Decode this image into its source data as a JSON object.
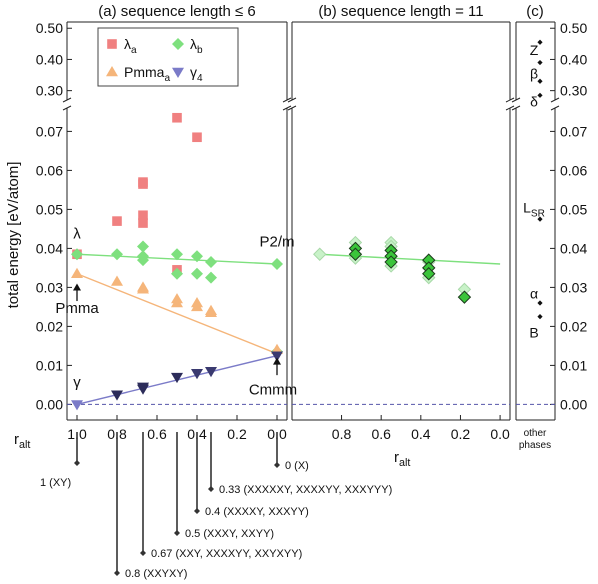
{
  "chart_data": {
    "type": "scatter",
    "ylabel": "total energy [eV/atom]",
    "y_axis": {
      "break": true,
      "lower_range": [
        -0.004,
        0.076
      ],
      "upper_range": [
        0.27,
        0.52
      ],
      "lower_ticks": [
        "0.00",
        "0.01",
        "0.02",
        "0.03",
        "0.04",
        "0.05",
        "0.06",
        "0.07"
      ],
      "upper_ticks": [
        "0.30",
        "0.40",
        "0.50"
      ],
      "ticks_both_sides": true
    },
    "panels": [
      {
        "id": "a",
        "title": "(a) sequence length ≤ 6",
        "xlabel_main": "r",
        "xlabel_sub": "alt",
        "xlim": [
          1.05,
          -0.05
        ],
        "xticks": [
          "1.0",
          "0.8",
          "0.6",
          "0.4",
          "0.2",
          "0.0"
        ],
        "legend": [
          {
            "label_main": "λ",
            "label_sub": "a",
            "marker": "square",
            "color": "#f08080"
          },
          {
            "label_main": "λ",
            "label_sub": "b",
            "marker": "diamond",
            "color": "#7ee07e"
          },
          {
            "label_main": "Pmma",
            "label_sub": "a",
            "marker": "triangle-up",
            "color": "#f5b57a"
          },
          {
            "label_main": "γ",
            "label_sub": "4",
            "marker": "triangle-down",
            "color": "#7b7bc8"
          }
        ],
        "series": [
          {
            "name": "λa",
            "marker": "square",
            "color": "#f08080",
            "points": [
              [
                1.0,
                0.0385
              ],
              [
                0.8,
                0.047
              ],
              [
                0.67,
                0.057
              ],
              [
                0.67,
                0.0565
              ],
              [
                0.67,
                0.0485
              ],
              [
                0.67,
                0.0465
              ],
              [
                0.5,
                0.0735
              ],
              [
                0.5,
                0.0345
              ],
              [
                0.4,
                0.0685
              ]
            ]
          },
          {
            "name": "λb",
            "marker": "diamond",
            "color": "#7ee07e",
            "points": [
              [
                1.0,
                0.0385
              ],
              [
                0.8,
                0.0385
              ],
              [
                0.67,
                0.0405
              ],
              [
                0.67,
                0.038
              ],
              [
                0.67,
                0.037
              ],
              [
                0.5,
                0.0385
              ],
              [
                0.5,
                0.0335
              ],
              [
                0.4,
                0.038
              ],
              [
                0.4,
                0.0335
              ],
              [
                0.33,
                0.0365
              ],
              [
                0.33,
                0.0325
              ],
              [
                0.0,
                0.036
              ],
              [
                0.0,
                0.0135
              ]
            ]
          },
          {
            "name": "Pmmaa",
            "marker": "triangle-up",
            "color": "#f5b57a",
            "points": [
              [
                1.0,
                0.0335
              ],
              [
                0.8,
                0.0315
              ],
              [
                0.67,
                0.03
              ],
              [
                0.67,
                0.0295
              ],
              [
                0.5,
                0.027
              ],
              [
                0.5,
                0.026
              ],
              [
                0.4,
                0.026
              ],
              [
                0.4,
                0.025
              ],
              [
                0.33,
                0.024
              ],
              [
                0.33,
                0.0235
              ],
              [
                0.0,
                0.014
              ]
            ]
          },
          {
            "name": "γ4",
            "marker": "triangle-down",
            "color": "#7b7bc8",
            "points": [
              [
                1.0,
                0.0
              ],
              [
                0.8,
                0.0025
              ],
              [
                0.67,
                0.0045
              ],
              [
                0.67,
                0.004
              ],
              [
                0.5,
                0.007
              ],
              [
                0.4,
                0.008
              ],
              [
                0.33,
                0.0085
              ],
              [
                0.0,
                0.0125
              ]
            ]
          }
        ],
        "fit_lines": [
          {
            "color": "#7ee07e",
            "from": [
              1.0,
              0.0385
            ],
            "to": [
              0.0,
              0.036
            ]
          },
          {
            "color": "#f5b57a",
            "from": [
              1.0,
              0.0335
            ],
            "to": [
              0.0,
              0.013
            ]
          },
          {
            "color": "#7b7bc8",
            "from": [
              1.0,
              0.0
            ],
            "to": [
              0.0,
              0.0125
            ]
          }
        ],
        "annotations": [
          {
            "text": "λ",
            "x": 1.0,
            "y": 0.0425,
            "anchor": "middle"
          },
          {
            "text": "Pmma",
            "x": 1.0,
            "y": 0.0235,
            "anchor": "middle"
          },
          {
            "text": "γ",
            "x": 1.0,
            "y": 0.0045,
            "anchor": "middle"
          },
          {
            "text": "P2/m",
            "x": 0.0,
            "y": 0.0405,
            "anchor": "middle"
          },
          {
            "text": "Cmmm",
            "x": 0.02,
            "y": 0.0025,
            "anchor": "middle"
          }
        ],
        "arrows": [
          {
            "x": 1.0,
            "from_y": 0.0265,
            "to_y": 0.031
          },
          {
            "x": 0.0,
            "from_y": 0.0075,
            "to_y": 0.012
          }
        ]
      },
      {
        "id": "b",
        "title": "(b) sequence length = 11",
        "xlabel_main": "r",
        "xlabel_sub": "alt",
        "xlim": [
          1.05,
          -0.05
        ],
        "xticks": [
          "0.8",
          "0.6",
          "0.4",
          "0.2",
          "0.0"
        ],
        "series": [
          {
            "name": "light",
            "marker": "diamond",
            "color": "#c8f2c8",
            "points": [
              [
                0.91,
                0.0385
              ],
              [
                0.73,
                0.0415
              ],
              [
                0.73,
                0.0375
              ],
              [
                0.55,
                0.0415
              ],
              [
                0.55,
                0.0405
              ],
              [
                0.55,
                0.0355
              ],
              [
                0.36,
                0.0365
              ],
              [
                0.36,
                0.0325
              ],
              [
                0.18,
                0.0295
              ]
            ]
          },
          {
            "name": "dark",
            "marker": "diamond",
            "color": "#3ac43a",
            "points": [
              [
                0.73,
                0.04
              ],
              [
                0.73,
                0.0385
              ],
              [
                0.55,
                0.0395
              ],
              [
                0.55,
                0.038
              ],
              [
                0.55,
                0.0365
              ],
              [
                0.36,
                0.037
              ],
              [
                0.36,
                0.035
              ],
              [
                0.36,
                0.0335
              ],
              [
                0.18,
                0.0275
              ]
            ]
          }
        ],
        "fit_lines": [
          {
            "color": "#7ee07e",
            "from": [
              0.91,
              0.0385
            ],
            "to": [
              0.0,
              0.036
            ]
          }
        ]
      },
      {
        "id": "c",
        "title": "(c)",
        "xlabel_lines": [
          "other",
          "phases"
        ],
        "phases": [
          {
            "label_main": "Z",
            "label_sub": "",
            "label_y": 0.43,
            "points": [
              0.455,
              0.39
            ]
          },
          {
            "label_main": "β",
            "label_sub": "",
            "label_y": 0.355,
            "points": [
              0.33
            ]
          },
          {
            "label_main": "δ",
            "label_sub": "",
            "label_y": 0.265,
            "points": [
              0.285
            ]
          },
          {
            "label_main": "L",
            "label_sub": "SR",
            "label_y": 0.0505,
            "points": [
              0.0475
            ]
          },
          {
            "label_main": "α",
            "label_sub": "",
            "label_y": 0.0285,
            "points": [
              0.026
            ]
          },
          {
            "label_main": "B",
            "label_sub": "",
            "label_y": 0.0185,
            "points": [
              0.0225
            ]
          }
        ]
      }
    ],
    "reference_line": {
      "y": 0.0,
      "style": "dashed",
      "color": "#5555aa"
    },
    "sequence_legend": [
      {
        "ralt": 0.0,
        "label": "0 (X)"
      },
      {
        "ralt": 0.33,
        "label": "0.33 (XXXXXY, XXXXYY, XXXYYY)"
      },
      {
        "ralt": 0.4,
        "label": "0.4 (XXXXY, XXXYY)"
      },
      {
        "ralt": 0.5,
        "label": "0.5 (XXXY, XXYY)"
      },
      {
        "ralt": 0.67,
        "label": "0.67 (XXY, XXXXYY, XXYXYY)"
      },
      {
        "ralt": 0.8,
        "label": "0.8 (XXYXY)"
      },
      {
        "ralt": 1.0,
        "label": "1 (XY)"
      }
    ]
  }
}
